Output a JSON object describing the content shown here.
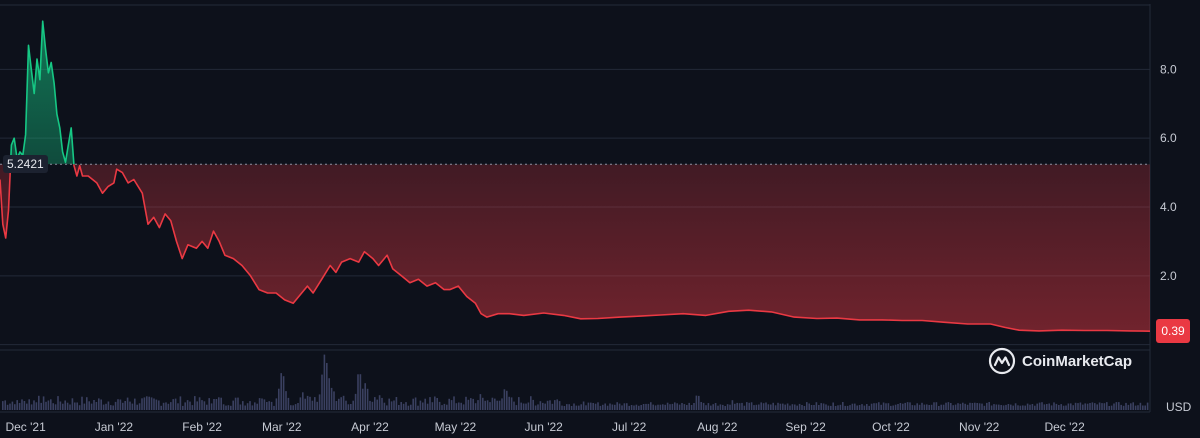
{
  "chart_data": {
    "type": "area",
    "currency": "USD",
    "reference_label": "5.2421",
    "reference_value": 5.2421,
    "last_price_label": "0.39",
    "y_ticks": [
      "2.0",
      "4.0",
      "6.0",
      "8.0"
    ],
    "ylim": [
      -1.9,
      9.9
    ],
    "x_labels": [
      "Dec '21",
      "Jan '22",
      "Feb '22",
      "Mar '22",
      "Apr '22",
      "May '22",
      "Jun '22",
      "Jul '22",
      "Aug '22",
      "Sep '22",
      "Oct '22",
      "Nov '22",
      "Dec '22"
    ],
    "x_range": [
      "2021-11-22",
      "2022-12-31"
    ],
    "series": [
      {
        "points": [
          [
            "2021-11-22",
            4.8
          ],
          [
            "2021-11-23",
            3.5
          ],
          [
            "2021-11-24",
            3.1
          ],
          [
            "2021-11-25",
            3.9
          ],
          [
            "2021-11-26",
            5.8
          ],
          [
            "2021-11-27",
            6.0
          ],
          [
            "2021-11-28",
            5.4
          ],
          [
            "2021-11-29",
            5.6
          ],
          [
            "2021-11-30",
            5.5
          ],
          [
            "2021-12-01",
            6.1
          ],
          [
            "2021-12-02",
            8.7
          ],
          [
            "2021-12-03",
            8.0
          ],
          [
            "2021-12-04",
            7.3
          ],
          [
            "2021-12-05",
            8.3
          ],
          [
            "2021-12-06",
            7.7
          ],
          [
            "2021-12-07",
            9.4
          ],
          [
            "2021-12-08",
            8.6
          ],
          [
            "2021-12-09",
            7.9
          ],
          [
            "2021-12-10",
            8.2
          ],
          [
            "2021-12-11",
            7.6
          ],
          [
            "2021-12-12",
            6.7
          ],
          [
            "2021-12-13",
            6.3
          ],
          [
            "2021-12-14",
            5.6
          ],
          [
            "2021-12-15",
            5.3
          ],
          [
            "2021-12-16",
            5.8
          ],
          [
            "2021-12-17",
            6.3
          ],
          [
            "2021-12-18",
            5.2
          ],
          [
            "2021-12-19",
            4.9
          ],
          [
            "2021-12-20",
            5.2
          ],
          [
            "2021-12-21",
            4.9
          ],
          [
            "2021-12-23",
            4.9
          ],
          [
            "2021-12-26",
            4.7
          ],
          [
            "2021-12-28",
            4.4
          ],
          [
            "2021-12-30",
            4.6
          ],
          [
            "2022-01-01",
            4.7
          ],
          [
            "2022-01-02",
            5.1
          ],
          [
            "2022-01-04",
            5.0
          ],
          [
            "2022-01-06",
            4.7
          ],
          [
            "2022-01-08",
            4.8
          ],
          [
            "2022-01-11",
            4.4
          ],
          [
            "2022-01-13",
            3.5
          ],
          [
            "2022-01-15",
            3.7
          ],
          [
            "2022-01-17",
            3.4
          ],
          [
            "2022-01-19",
            3.8
          ],
          [
            "2022-01-21",
            3.6
          ],
          [
            "2022-01-23",
            3.0
          ],
          [
            "2022-01-25",
            2.5
          ],
          [
            "2022-01-27",
            2.9
          ],
          [
            "2022-01-30",
            2.8
          ],
          [
            "2022-02-01",
            3.0
          ],
          [
            "2022-02-03",
            2.8
          ],
          [
            "2022-02-05",
            3.3
          ],
          [
            "2022-02-07",
            3.0
          ],
          [
            "2022-02-09",
            2.6
          ],
          [
            "2022-02-12",
            2.5
          ],
          [
            "2022-02-15",
            2.3
          ],
          [
            "2022-02-18",
            2.0
          ],
          [
            "2022-02-21",
            1.6
          ],
          [
            "2022-02-24",
            1.5
          ],
          [
            "2022-02-27",
            1.5
          ],
          [
            "2022-03-02",
            1.3
          ],
          [
            "2022-03-05",
            1.2
          ],
          [
            "2022-03-08",
            1.5
          ],
          [
            "2022-03-10",
            1.7
          ],
          [
            "2022-03-12",
            1.5
          ],
          [
            "2022-03-15",
            1.9
          ],
          [
            "2022-03-18",
            2.3
          ],
          [
            "2022-03-20",
            2.1
          ],
          [
            "2022-03-22",
            2.4
          ],
          [
            "2022-03-25",
            2.5
          ],
          [
            "2022-03-28",
            2.4
          ],
          [
            "2022-03-30",
            2.7
          ],
          [
            "2022-04-02",
            2.5
          ],
          [
            "2022-04-04",
            2.3
          ],
          [
            "2022-04-07",
            2.6
          ],
          [
            "2022-04-09",
            2.2
          ],
          [
            "2022-04-12",
            2.0
          ],
          [
            "2022-04-15",
            1.8
          ],
          [
            "2022-04-18",
            1.9
          ],
          [
            "2022-04-21",
            1.7
          ],
          [
            "2022-04-24",
            1.8
          ],
          [
            "2022-04-27",
            1.6
          ],
          [
            "2022-04-29",
            1.6
          ],
          [
            "2022-05-02",
            1.7
          ],
          [
            "2022-05-05",
            1.4
          ],
          [
            "2022-05-08",
            1.2
          ],
          [
            "2022-05-10",
            0.9
          ],
          [
            "2022-05-12",
            0.8
          ],
          [
            "2022-05-16",
            0.9
          ],
          [
            "2022-05-20",
            0.9
          ],
          [
            "2022-05-25",
            0.85
          ],
          [
            "2022-06-01",
            0.92
          ],
          [
            "2022-06-08",
            0.85
          ],
          [
            "2022-06-14",
            0.75
          ],
          [
            "2022-06-20",
            0.76
          ],
          [
            "2022-06-28",
            0.8
          ],
          [
            "2022-07-05",
            0.83
          ],
          [
            "2022-07-12",
            0.86
          ],
          [
            "2022-07-20",
            0.9
          ],
          [
            "2022-07-28",
            0.85
          ],
          [
            "2022-08-05",
            0.97
          ],
          [
            "2022-08-12",
            1.0
          ],
          [
            "2022-08-20",
            0.95
          ],
          [
            "2022-08-28",
            0.8
          ],
          [
            "2022-09-05",
            0.76
          ],
          [
            "2022-09-12",
            0.77
          ],
          [
            "2022-09-20",
            0.72
          ],
          [
            "2022-09-28",
            0.72
          ],
          [
            "2022-10-05",
            0.7
          ],
          [
            "2022-10-12",
            0.7
          ],
          [
            "2022-10-20",
            0.65
          ],
          [
            "2022-10-28",
            0.6
          ],
          [
            "2022-11-05",
            0.6
          ],
          [
            "2022-11-10",
            0.5
          ],
          [
            "2022-11-15",
            0.42
          ],
          [
            "2022-11-22",
            0.4
          ],
          [
            "2022-11-30",
            0.42
          ],
          [
            "2022-12-08",
            0.41
          ],
          [
            "2022-12-16",
            0.41
          ],
          [
            "2022-12-24",
            0.4
          ],
          [
            "2022-12-31",
            0.39
          ]
        ]
      }
    ],
    "volume_peaks": [
      [
        "2021-11-28",
        0.15
      ],
      [
        "2021-12-05",
        0.25
      ],
      [
        "2022-01-05",
        0.1
      ],
      [
        "2022-02-05",
        0.2
      ],
      [
        "2022-02-22",
        0.35
      ],
      [
        "2022-03-01",
        0.7
      ],
      [
        "2022-03-08",
        0.35
      ],
      [
        "2022-03-10",
        0.3
      ],
      [
        "2022-03-16",
        0.95
      ],
      [
        "2022-03-18",
        0.5
      ],
      [
        "2022-03-22",
        0.3
      ],
      [
        "2022-03-28",
        0.85
      ],
      [
        "2022-03-30",
        0.5
      ],
      [
        "2022-04-04",
        0.35
      ],
      [
        "2022-04-20",
        0.15
      ],
      [
        "2022-05-10",
        0.3
      ],
      [
        "2022-05-18",
        0.45
      ],
      [
        "2022-05-27",
        0.2
      ],
      [
        "2022-06-15",
        0.15
      ],
      [
        "2022-07-10",
        0.1
      ],
      [
        "2022-07-25",
        0.3
      ],
      [
        "2022-08-06",
        0.2
      ],
      [
        "2022-09-10",
        0.08
      ],
      [
        "2022-11-08",
        0.1
      ]
    ],
    "colors": {
      "background": "#0d111b",
      "above_reference": "#16c784",
      "below_reference": "#ea3943",
      "volume": "#3a4060",
      "grid": "#232a38"
    }
  },
  "watermark": {
    "text": "CoinMarketCap",
    "icon": "coinmarketcap-logo-icon"
  }
}
